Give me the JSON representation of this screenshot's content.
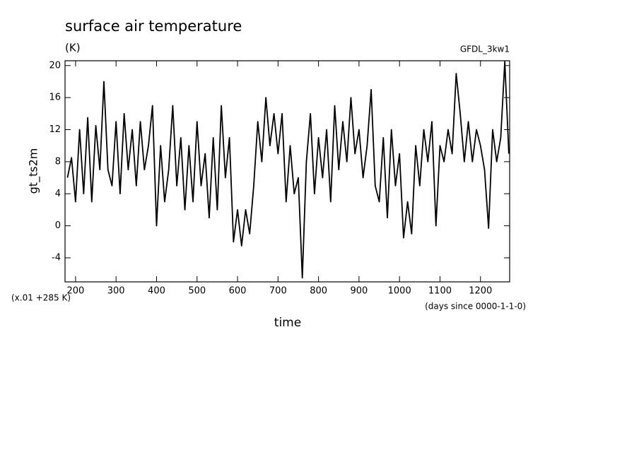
{
  "chart_data": {
    "type": "line",
    "title": "surface air temperature",
    "units": "(K)",
    "dataset": "GFDL_3kw1",
    "ylabel": "gt_ts2m",
    "xlabel": "time",
    "value_scale_note": "(x.01 +285 K)",
    "x_units_note": "(days since 0000-1-1-0)",
    "xlim": [
      174,
      1272
    ],
    "ylim": [
      -7,
      20.6
    ],
    "xticks": [
      200,
      300,
      400,
      500,
      600,
      700,
      800,
      900,
      1000,
      1100,
      1200
    ],
    "yticks": [
      -4,
      0,
      4,
      8,
      12,
      16,
      20
    ],
    "grid": false,
    "series": [
      {
        "name": "gt_ts2m",
        "color": "#000000",
        "x": [
          180,
          190,
          200,
          210,
          220,
          230,
          240,
          250,
          260,
          270,
          280,
          290,
          300,
          310,
          320,
          330,
          340,
          350,
          360,
          370,
          380,
          390,
          400,
          410,
          420,
          430,
          440,
          450,
          460,
          470,
          480,
          490,
          500,
          510,
          520,
          530,
          540,
          550,
          560,
          570,
          580,
          590,
          600,
          610,
          620,
          630,
          640,
          650,
          660,
          670,
          680,
          690,
          700,
          710,
          720,
          730,
          740,
          750,
          760,
          770,
          780,
          790,
          800,
          810,
          820,
          830,
          840,
          850,
          860,
          870,
          880,
          890,
          900,
          910,
          920,
          930,
          940,
          950,
          960,
          970,
          980,
          990,
          1000,
          1010,
          1020,
          1030,
          1040,
          1050,
          1060,
          1070,
          1080,
          1090,
          1100,
          1110,
          1120,
          1130,
          1140,
          1150,
          1160,
          1170,
          1180,
          1190,
          1200,
          1210,
          1220,
          1230,
          1240,
          1250,
          1260,
          1270
        ],
        "values": [
          6,
          8.5,
          3,
          12,
          4,
          13.5,
          3,
          12.5,
          7,
          18,
          7,
          5,
          13,
          4,
          14,
          7,
          12,
          5,
          13,
          7,
          10,
          15,
          0,
          10,
          3,
          7,
          15,
          5,
          11,
          2,
          10,
          3,
          13,
          5,
          9,
          1,
          11,
          2,
          15,
          6,
          11,
          -2,
          2,
          -2.5,
          2,
          -1,
          5,
          13,
          8,
          16,
          10,
          14,
          9,
          14,
          3,
          10,
          4,
          6,
          -6.5,
          8,
          14,
          4,
          11,
          6,
          12,
          3,
          15,
          7,
          13,
          8,
          16,
          9,
          12,
          6,
          10,
          17,
          5,
          3,
          11,
          1,
          12,
          5,
          9,
          -1.5,
          3,
          -1,
          10,
          5,
          12,
          8,
          13,
          0,
          10,
          8,
          12,
          9,
          19,
          14,
          8,
          13,
          8,
          12,
          10,
          7,
          -0.3,
          12,
          8,
          11,
          20.5,
          9
        ]
      }
    ]
  }
}
